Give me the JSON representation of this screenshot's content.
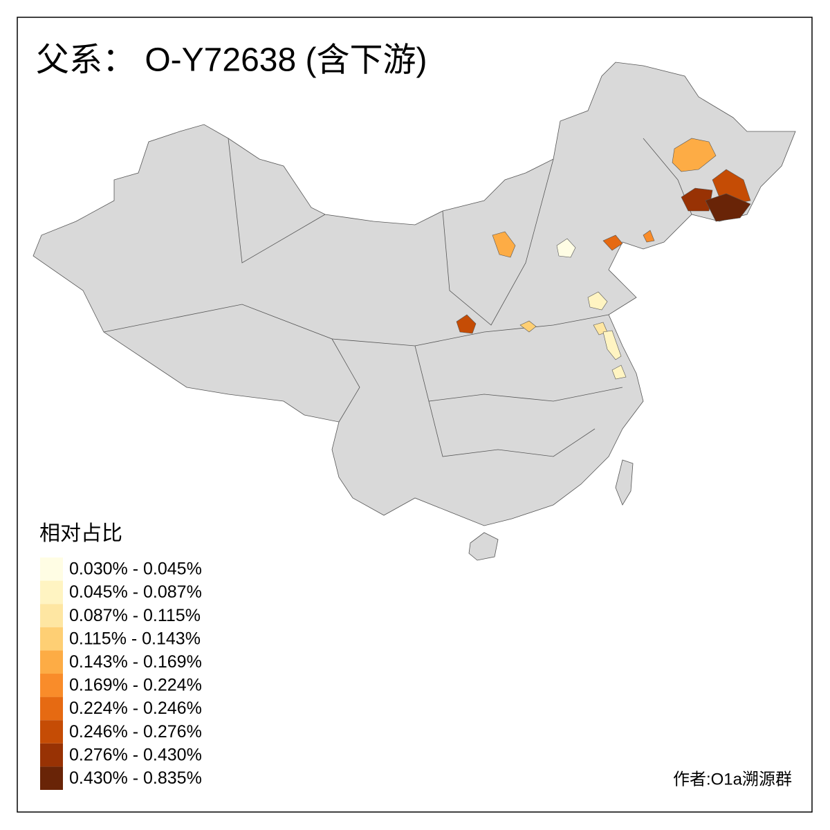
{
  "title": "父系： O-Y72638 (含下游)",
  "legend": {
    "title": "相对占比",
    "items": [
      {
        "label": "0.030% - 0.045%",
        "color": "#fffde4"
      },
      {
        "label": "0.045% - 0.087%",
        "color": "#fff4c2"
      },
      {
        "label": "0.087% - 0.115%",
        "color": "#fee6a2"
      },
      {
        "label": "0.115% - 0.143%",
        "color": "#fecf74"
      },
      {
        "label": "0.143% - 0.169%",
        "color": "#fdac45"
      },
      {
        "label": "0.169% - 0.224%",
        "color": "#f98c2a"
      },
      {
        "label": "0.224% - 0.246%",
        "color": "#e66a12"
      },
      {
        "label": "0.246% - 0.276%",
        "color": "#c54c05"
      },
      {
        "label": "0.276% - 0.430%",
        "color": "#983204"
      },
      {
        "label": "0.430% - 0.835%",
        "color": "#692407"
      }
    ]
  },
  "credit": "作者:O1a溯源群"
}
